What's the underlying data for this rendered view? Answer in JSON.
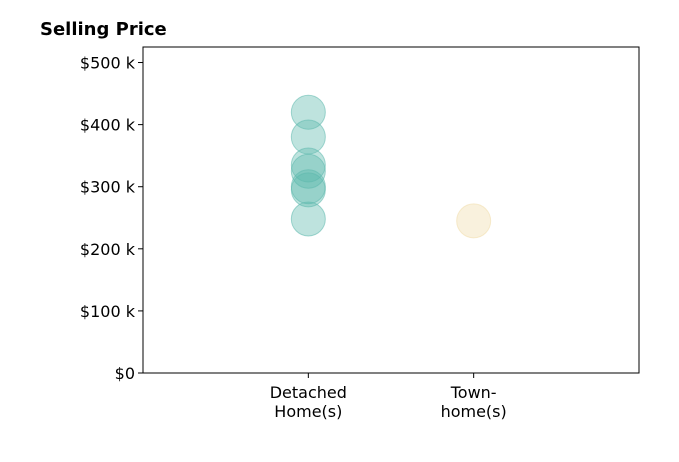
{
  "chart_data": {
    "type": "scatter",
    "title": "Selling Price",
    "xlabel": "",
    "ylabel": "",
    "categories": [
      "Detached\nHome(s)",
      "Town-\nhome(s)"
    ],
    "xlim": [
      -1,
      2
    ],
    "ylim": [
      0,
      525000
    ],
    "yticks": [
      0,
      100000,
      200000,
      300000,
      400000,
      500000
    ],
    "ytick_labels": [
      "$0",
      "$100 k",
      "$200 k",
      "$300 k",
      "$400 k",
      "$500 k"
    ],
    "grid": false,
    "legend": "none",
    "series": [
      {
        "category_index": 0,
        "color": "#5cb8ad",
        "values": [
          420000,
          380000,
          335000,
          325000,
          300000,
          295000,
          248000
        ]
      },
      {
        "category_index": 1,
        "color": "#f1dcaa",
        "values": [
          245000
        ]
      }
    ]
  }
}
